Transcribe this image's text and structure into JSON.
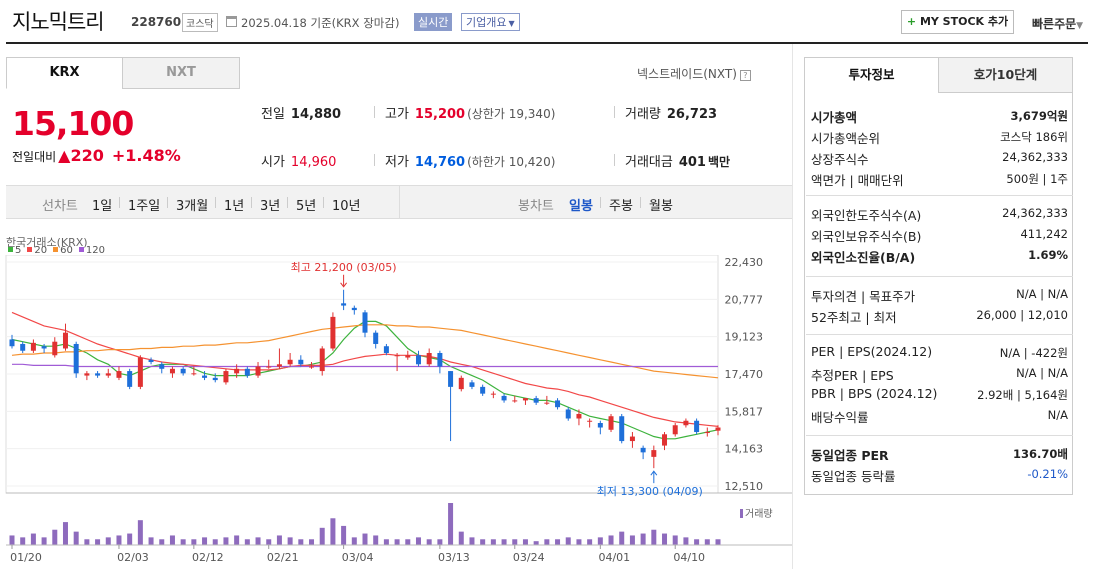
{
  "header": {
    "company_name": "지노믹트리",
    "code": "228760",
    "market": "코스닥",
    "date_text": "2025.04.18  기준(KRX 장마감)",
    "realtime_label": "실시간",
    "company_overview_label": "기업개요",
    "mystock_label": "MY STOCK 추가",
    "quick_order_label": "빠른주문"
  },
  "market_tabs": [
    "KRX",
    "NXT"
  ],
  "nxt_link": "넥스트레이드(NXT)",
  "price": {
    "current": "15,100",
    "prev_label": "전일대비",
    "change": "220",
    "change_pct": "+1.48%"
  },
  "stats": {
    "prev_close_label": "전일",
    "prev_close": "14,880",
    "open_label": "시가",
    "open": "14,960",
    "high_label": "고가",
    "high": "15,200",
    "upper_limit": "(상한가 19,340)",
    "low_label": "저가",
    "low": "14,760",
    "lower_limit": "(하한가 10,420)",
    "volume_label": "거래량",
    "volume": "26,723",
    "amount_label": "거래대금",
    "amount": "401",
    "amount_unit": "백만"
  },
  "period_bar": {
    "line_label": "선차트",
    "line_periods": [
      "1일",
      "1주일",
      "3개월",
      "1년",
      "3년",
      "5년",
      "10년"
    ],
    "candle_label": "봉차트",
    "candle_periods": [
      "일봉",
      "주봉",
      "월봉"
    ],
    "selected_candle": "일봉"
  },
  "chart_source": "한국거래소(KRX)",
  "chart_data": {
    "type": "candlestick",
    "ma_legend": [
      {
        "name": "5",
        "color": "#3db33d"
      },
      {
        "name": "20",
        "color": "#f24848"
      },
      {
        "name": "60",
        "color": "#f59230"
      },
      {
        "name": "120",
        "color": "#a05bd6"
      }
    ],
    "y_ticks": [
      "22,430",
      "20,777",
      "19,123",
      "17,470",
      "15,817",
      "14,163",
      "12,510"
    ],
    "ylim": [
      12510,
      22430
    ],
    "x_ticks": [
      "01/20",
      "02/03",
      "02/12",
      "02/21",
      "03/04",
      "03/13",
      "03/24",
      "04/01",
      "04/10"
    ],
    "high_annotation": "최고 21,200 (03/05)",
    "low_annotation": "최저 13,300 (04/09)",
    "volume_label": "거래량",
    "candles": [
      [
        19000,
        18700,
        19200,
        18600
      ],
      [
        18800,
        18500,
        18900,
        18400
      ],
      [
        18500,
        18850,
        19000,
        18400
      ],
      [
        18700,
        18600,
        18800,
        18400
      ],
      [
        18300,
        18900,
        19100,
        18200
      ],
      [
        18600,
        19300,
        19700,
        18500
      ],
      [
        18800,
        17500,
        18900,
        17300
      ],
      [
        17400,
        17500,
        17600,
        17200
      ],
      [
        17500,
        17400,
        17600,
        17300
      ],
      [
        17400,
        17500,
        17700,
        17300
      ],
      [
        17300,
        17600,
        17800,
        17200
      ],
      [
        17600,
        16900,
        17700,
        16800
      ],
      [
        16900,
        18200,
        18300,
        16800
      ],
      [
        18100,
        18000,
        18200,
        17900
      ],
      [
        17900,
        17700,
        18000,
        17500
      ],
      [
        17500,
        17700,
        17800,
        17300
      ],
      [
        17700,
        17500,
        17800,
        17400
      ],
      [
        17500,
        17500,
        17800,
        17400
      ],
      [
        17400,
        17300,
        17600,
        17200
      ],
      [
        17300,
        17200,
        17500,
        17100
      ],
      [
        17100,
        17600,
        17700,
        17000
      ],
      [
        17500,
        17700,
        17900,
        17300
      ],
      [
        17700,
        17400,
        17800,
        17300
      ],
      [
        17400,
        17800,
        18000,
        17300
      ],
      [
        17800,
        17800,
        18100,
        17700
      ],
      [
        17800,
        17900,
        18600,
        17700
      ],
      [
        17900,
        18100,
        18400,
        17800
      ],
      [
        18100,
        17900,
        18300,
        17800
      ],
      [
        17800,
        17800,
        18000,
        17700
      ],
      [
        17600,
        18600,
        18700,
        17400
      ],
      [
        18600,
        20000,
        20200,
        18500
      ],
      [
        20600,
        20500,
        21200,
        20300
      ],
      [
        20400,
        20300,
        20500,
        20100
      ],
      [
        20200,
        19300,
        20300,
        19100
      ],
      [
        19300,
        18800,
        19400,
        18600
      ],
      [
        18700,
        18400,
        18800,
        18300
      ],
      [
        18300,
        18300,
        18400,
        17600
      ],
      [
        18200,
        18300,
        18500,
        18100
      ],
      [
        18300,
        17900,
        18500,
        17800
      ],
      [
        17900,
        18400,
        18600,
        17800
      ],
      [
        18400,
        17800,
        18500,
        17500
      ],
      [
        17600,
        16900,
        17600,
        14500
      ],
      [
        16800,
        17300,
        17400,
        16700
      ],
      [
        17100,
        16900,
        17200,
        16800
      ],
      [
        16900,
        16600,
        17000,
        16500
      ],
      [
        16600,
        16600,
        16700,
        16400
      ],
      [
        16500,
        16300,
        16600,
        16200
      ],
      [
        16300,
        16300,
        16500,
        16200
      ],
      [
        16300,
        16400,
        16400,
        16100
      ],
      [
        16400,
        16200,
        16500,
        16100
      ],
      [
        16200,
        16200,
        16500,
        16100
      ],
      [
        16300,
        16000,
        16400,
        15900
      ],
      [
        15900,
        15500,
        16000,
        15400
      ],
      [
        15500,
        15700,
        15900,
        15200
      ],
      [
        15400,
        15400,
        15500,
        15100
      ],
      [
        15300,
        15100,
        15400,
        14800
      ],
      [
        15000,
        15600,
        15700,
        14900
      ],
      [
        15600,
        14500,
        15700,
        14400
      ],
      [
        14500,
        14700,
        14900,
        14200
      ],
      [
        14200,
        14000,
        14300,
        13700
      ],
      [
        13800,
        14100,
        14300,
        13300
      ],
      [
        14300,
        14800,
        14900,
        14100
      ],
      [
        14800,
        15200,
        15300,
        14700
      ],
      [
        15200,
        15400,
        15500,
        15100
      ],
      [
        15400,
        14900,
        15500,
        14800
      ],
      [
        14900,
        14900,
        15100,
        14700
      ],
      [
        14960,
        15100,
        15200,
        14760
      ]
    ],
    "ma5": [
      19000,
      18900,
      18800,
      18700,
      18700,
      18800,
      18600,
      18400,
      18100,
      17900,
      17500,
      17400,
      17600,
      17800,
      17900,
      17900,
      17900,
      17700,
      17500,
      17400,
      17400,
      17400,
      17400,
      17500,
      17600,
      17700,
      17800,
      17800,
      17900,
      18000,
      18400,
      19000,
      19500,
      19800,
      19800,
      19600,
      19100,
      18600,
      18300,
      18200,
      18100,
      17800,
      17600,
      17400,
      17200,
      16900,
      16600,
      16500,
      16400,
      16300,
      16300,
      16200,
      16000,
      15800,
      15600,
      15500,
      15400,
      15300,
      15100,
      14900,
      14700,
      14600,
      14600,
      14700,
      14800,
      14900,
      15000
    ],
    "ma20": [
      20200,
      20000,
      19800,
      19600,
      19500,
      19400,
      19200,
      19000,
      18800,
      18650,
      18500,
      18350,
      18200,
      18100,
      18000,
      17950,
      17900,
      17850,
      17800,
      17750,
      17700,
      17650,
      17650,
      17650,
      17650,
      17700,
      17800,
      17850,
      17850,
      17850,
      17900,
      18050,
      18150,
      18250,
      18300,
      18350,
      18300,
      18300,
      18300,
      18250,
      18150,
      18000,
      17900,
      17800,
      17650,
      17500,
      17350,
      17200,
      17050,
      16950,
      16850,
      16800,
      16700,
      16550,
      16450,
      16300,
      16150,
      16000,
      15850,
      15700,
      15550,
      15450,
      15350,
      15300,
      15250,
      15200,
      15150
    ],
    "ma60": [
      18300,
      18350,
      18350,
      18400,
      18400,
      18450,
      18450,
      18500,
      18500,
      18550,
      18550,
      18550,
      18600,
      18600,
      18650,
      18650,
      18700,
      18700,
      18750,
      18750,
      18800,
      18850,
      18850,
      18900,
      18950,
      19050,
      19150,
      19250,
      19350,
      19450,
      19500,
      19550,
      19600,
      19650,
      19650,
      19650,
      19600,
      19600,
      19550,
      19550,
      19500,
      19450,
      19400,
      19300,
      19200,
      19100,
      19000,
      18900,
      18800,
      18700,
      18600,
      18500,
      18400,
      18300,
      18200,
      18100,
      18000,
      17900,
      17800,
      17700,
      17600,
      17550,
      17500,
      17450,
      17400,
      17350,
      17300
    ],
    "ma120": [
      17900,
      17900,
      17850,
      17850,
      17850,
      17850,
      17800,
      17800,
      17800,
      17800,
      17800,
      17800,
      17800,
      17800,
      17800,
      17800,
      17800,
      17800,
      17800,
      17800,
      17800,
      17800,
      17800,
      17800,
      17800,
      17800,
      17800,
      17800,
      17800,
      17800,
      17800,
      17800,
      17800,
      17800,
      17800,
      17800,
      17800,
      17800,
      17800,
      17800,
      17800,
      17800,
      17800,
      17800,
      17800,
      17800,
      17800,
      17800,
      17800,
      17800,
      17800,
      17800,
      17800,
      17800,
      17800,
      17800,
      17800,
      17800,
      17800,
      17800,
      17800,
      17800,
      17800,
      17800,
      17800,
      17800,
      17800
    ],
    "volume": [
      5,
      4,
      6,
      4,
      8,
      12,
      7,
      3,
      3,
      4,
      5,
      6,
      13,
      4,
      3,
      5,
      3,
      3,
      4,
      3,
      4,
      5,
      3,
      4,
      3,
      5,
      4,
      3,
      3,
      9,
      14,
      10,
      4,
      6,
      5,
      3,
      3,
      3,
      4,
      3,
      3,
      22,
      7,
      4,
      3,
      3,
      3,
      3,
      3,
      2,
      3,
      3,
      4,
      3,
      3,
      4,
      5,
      7,
      5,
      6,
      8,
      6,
      5,
      4,
      3,
      3,
      3
    ]
  },
  "right_panel": {
    "tabs": [
      "투자정보",
      "호가10단계"
    ],
    "sections": [
      [
        {
          "label": "시가총액",
          "value": "3,679억원",
          "bold": true
        },
        {
          "label": "시가총액순위",
          "value": "코스닥 186위"
        },
        {
          "label": "상장주식수",
          "value": "24,362,333"
        },
        {
          "label": "액면가 | 매매단위",
          "value": "500원 | 1주"
        }
      ],
      [
        {
          "label": "외국인한도주식수(A)",
          "value": "24,362,333"
        },
        {
          "label": "외국인보유주식수(B)",
          "value": "411,242"
        },
        {
          "label": "외국인소진율(B/A)",
          "value": "1.69%",
          "bold": true
        }
      ],
      [
        {
          "label": "투자의견 | 목표주가",
          "value": "N/A | N/A"
        },
        {
          "label": "52주최고 | 최저",
          "value": "26,000 | 12,010"
        }
      ],
      [
        {
          "label": "PER | EPS(2024.12)",
          "value": "N/A | -422원"
        },
        {
          "label": "추정PER | EPS",
          "value": "N/A | N/A"
        },
        {
          "label": "PBR | BPS (2024.12)",
          "value": "2.92배 | 5,164원"
        },
        {
          "label": "배당수익률",
          "value": "N/A"
        }
      ],
      [
        {
          "label": "동일업종 PER",
          "value": "136.70배",
          "bold": true
        },
        {
          "label": "동일업종 등락률",
          "value": "-0.21%",
          "blue": true
        }
      ]
    ]
  }
}
